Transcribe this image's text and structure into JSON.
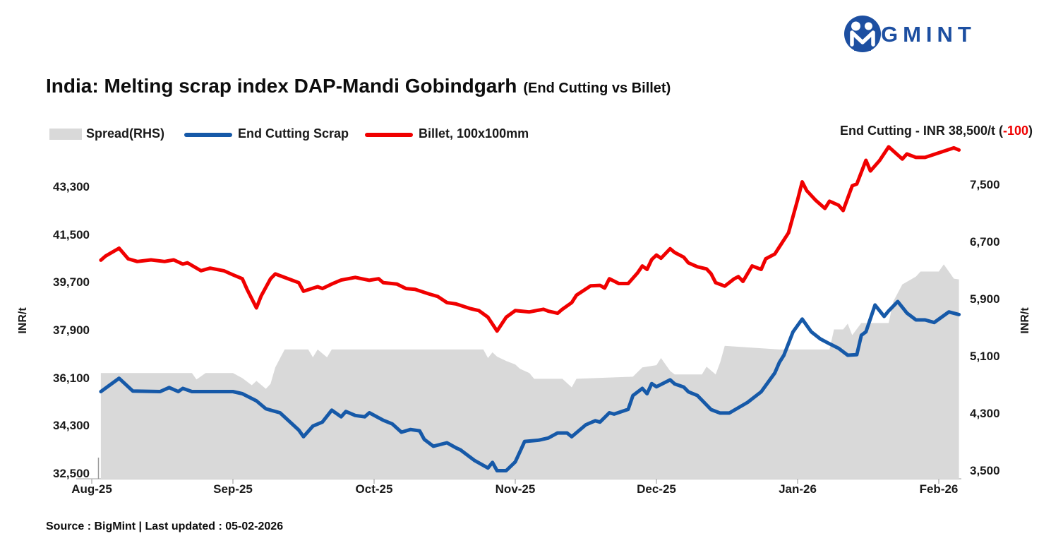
{
  "brand": {
    "name": "BIGMINT",
    "color": "#1d4fa1"
  },
  "title": {
    "main": "India: Melting scrap index DAP-Mandi Gobindgarh",
    "sub": "(End Cutting vs Billet)"
  },
  "annotation": {
    "prefix": "End Cutting - INR 38,500/t (",
    "change": "-100",
    "suffix": ")"
  },
  "footer": {
    "source": "Source : BigMint | Last updated : 05-02-2026"
  },
  "chart_data": {
    "type": "line",
    "title": "India: Melting scrap index DAP-Mandi Gobindgarh (End Cutting vs Billet)",
    "left_axis": {
      "label": "INR/t",
      "range": [
        32500,
        43300
      ],
      "tick_labels": [
        "43,300",
        "41,500",
        "39,700",
        "37,900",
        "36,100",
        "34,300",
        "32,500"
      ],
      "tick_values": [
        43300,
        41500,
        39700,
        37900,
        36100,
        34300,
        32500
      ]
    },
    "right_axis": {
      "label": "INR/t",
      "range": [
        3500,
        7500
      ],
      "tick_labels": [
        "7,500",
        "6,700",
        "5,900",
        "5,100",
        "4,300",
        "3,500"
      ],
      "tick_values": [
        7500,
        6700,
        5900,
        5100,
        4300,
        3500
      ]
    },
    "x_axis": {
      "tick_labels": [
        "Aug-25",
        "Sep-25",
        "Oct-25",
        "Nov-25",
        "Dec-25",
        "Jan-26",
        "Feb-26"
      ]
    },
    "legend_position": "top-left",
    "grid": false,
    "series": [
      {
        "name": "Spread(RHS)",
        "type": "area",
        "axis": "right",
        "color": "#d9d9d9",
        "points": [
          [
            "2025-08-03",
            4870
          ],
          [
            "2025-08-23",
            4870
          ],
          [
            "2025-08-24",
            4780
          ],
          [
            "2025-08-26",
            4870
          ],
          [
            "2025-09-01",
            4870
          ],
          [
            "2025-09-03",
            4800
          ],
          [
            "2025-09-05",
            4700
          ],
          [
            "2025-09-06",
            4760
          ],
          [
            "2025-09-08",
            4650
          ],
          [
            "2025-09-09",
            4720
          ],
          [
            "2025-09-10",
            4950
          ],
          [
            "2025-09-12",
            5200
          ],
          [
            "2025-09-17",
            5200
          ],
          [
            "2025-09-18",
            5090
          ],
          [
            "2025-09-19",
            5200
          ],
          [
            "2025-09-21",
            5090
          ],
          [
            "2025-09-22",
            5200
          ],
          [
            "2025-10-25",
            5200
          ],
          [
            "2025-10-26",
            5080
          ],
          [
            "2025-10-27",
            5160
          ],
          [
            "2025-10-28",
            5100
          ],
          [
            "2025-10-30",
            5040
          ],
          [
            "2025-11-01",
            4990
          ],
          [
            "2025-11-02",
            4930
          ],
          [
            "2025-11-04",
            4870
          ],
          [
            "2025-11-05",
            4790
          ],
          [
            "2025-11-11",
            4790
          ],
          [
            "2025-11-13",
            4670
          ],
          [
            "2025-11-14",
            4790
          ],
          [
            "2025-11-26",
            4820
          ],
          [
            "2025-11-28",
            4950
          ],
          [
            "2025-12-01",
            4980
          ],
          [
            "2025-12-02",
            5080
          ],
          [
            "2025-12-03",
            4990
          ],
          [
            "2025-12-04",
            4900
          ],
          [
            "2025-12-05",
            4850
          ],
          [
            "2025-12-11",
            4850
          ],
          [
            "2025-12-12",
            4960
          ],
          [
            "2025-12-14",
            4850
          ],
          [
            "2025-12-15",
            5020
          ],
          [
            "2025-12-16",
            5250
          ],
          [
            "2025-12-28",
            5200
          ],
          [
            "2026-01-08",
            5200
          ],
          [
            "2026-01-09",
            5480
          ],
          [
            "2026-01-11",
            5480
          ],
          [
            "2026-01-12",
            5560
          ],
          [
            "2026-01-13",
            5400
          ],
          [
            "2026-01-15",
            5570
          ],
          [
            "2026-01-21",
            5570
          ],
          [
            "2026-01-22",
            5870
          ],
          [
            "2026-01-24",
            6110
          ],
          [
            "2026-01-27",
            6220
          ],
          [
            "2026-01-28",
            6290
          ],
          [
            "2026-02-01",
            6290
          ],
          [
            "2026-02-02",
            6390
          ],
          [
            "2026-02-03",
            6290
          ],
          [
            "2026-02-04",
            6190
          ],
          [
            "2026-02-05",
            6180
          ]
        ]
      },
      {
        "name": "End Cutting Scrap",
        "type": "line",
        "axis": "left",
        "color": "#1659a8",
        "last_value": 38500,
        "last_change": -100,
        "points": [
          [
            "2025-08-03",
            35600
          ],
          [
            "2025-08-07",
            36100
          ],
          [
            "2025-08-10",
            35620
          ],
          [
            "2025-08-16",
            35600
          ],
          [
            "2025-08-18",
            35750
          ],
          [
            "2025-08-20",
            35600
          ],
          [
            "2025-08-21",
            35720
          ],
          [
            "2025-08-23",
            35600
          ],
          [
            "2025-09-01",
            35600
          ],
          [
            "2025-09-03",
            35520
          ],
          [
            "2025-09-06",
            35250
          ],
          [
            "2025-09-08",
            34950
          ],
          [
            "2025-09-11",
            34800
          ],
          [
            "2025-09-15",
            34150
          ],
          [
            "2025-09-16",
            33900
          ],
          [
            "2025-09-18",
            34300
          ],
          [
            "2025-09-20",
            34450
          ],
          [
            "2025-09-22",
            34900
          ],
          [
            "2025-09-24",
            34650
          ],
          [
            "2025-09-25",
            34850
          ],
          [
            "2025-09-27",
            34700
          ],
          [
            "2025-09-29",
            34650
          ],
          [
            "2025-09-30",
            34800
          ],
          [
            "2025-10-03",
            34520
          ],
          [
            "2025-10-05",
            34380
          ],
          [
            "2025-10-07",
            34070
          ],
          [
            "2025-10-09",
            34170
          ],
          [
            "2025-10-11",
            34120
          ],
          [
            "2025-10-12",
            33800
          ],
          [
            "2025-10-14",
            33540
          ],
          [
            "2025-10-17",
            33670
          ],
          [
            "2025-10-19",
            33480
          ],
          [
            "2025-10-20",
            33400
          ],
          [
            "2025-10-23",
            33010
          ],
          [
            "2025-10-26",
            32720
          ],
          [
            "2025-10-27",
            32930
          ],
          [
            "2025-10-28",
            32620
          ],
          [
            "2025-10-30",
            32620
          ],
          [
            "2025-11-01",
            32950
          ],
          [
            "2025-11-03",
            33720
          ],
          [
            "2025-11-06",
            33770
          ],
          [
            "2025-11-08",
            33850
          ],
          [
            "2025-11-10",
            34040
          ],
          [
            "2025-11-12",
            34040
          ],
          [
            "2025-11-13",
            33900
          ],
          [
            "2025-11-16",
            34350
          ],
          [
            "2025-11-18",
            34500
          ],
          [
            "2025-11-19",
            34450
          ],
          [
            "2025-11-21",
            34800
          ],
          [
            "2025-11-22",
            34750
          ],
          [
            "2025-11-25",
            34930
          ],
          [
            "2025-11-26",
            35450
          ],
          [
            "2025-11-28",
            35720
          ],
          [
            "2025-11-29",
            35520
          ],
          [
            "2025-11-30",
            35900
          ],
          [
            "2025-12-01",
            35780
          ],
          [
            "2025-12-04",
            36040
          ],
          [
            "2025-12-05",
            35890
          ],
          [
            "2025-12-07",
            35770
          ],
          [
            "2025-12-08",
            35590
          ],
          [
            "2025-12-10",
            35450
          ],
          [
            "2025-12-13",
            34920
          ],
          [
            "2025-12-15",
            34790
          ],
          [
            "2025-12-17",
            34790
          ],
          [
            "2025-12-21",
            35190
          ],
          [
            "2025-12-24",
            35590
          ],
          [
            "2025-12-27",
            36300
          ],
          [
            "2025-12-28",
            36700
          ],
          [
            "2025-12-29",
            36970
          ],
          [
            "2025-12-31",
            37850
          ],
          [
            "2026-01-02",
            38330
          ],
          [
            "2026-01-04",
            37850
          ],
          [
            "2026-01-06",
            37580
          ],
          [
            "2026-01-08",
            37400
          ],
          [
            "2026-01-10",
            37230
          ],
          [
            "2026-01-12",
            36970
          ],
          [
            "2026-01-14",
            36990
          ],
          [
            "2026-01-15",
            37720
          ],
          [
            "2026-01-16",
            37850
          ],
          [
            "2026-01-18",
            38860
          ],
          [
            "2026-01-20",
            38430
          ],
          [
            "2026-01-21",
            38640
          ],
          [
            "2026-01-23",
            38990
          ],
          [
            "2026-01-25",
            38560
          ],
          [
            "2026-01-27",
            38300
          ],
          [
            "2026-01-29",
            38300
          ],
          [
            "2026-01-31",
            38200
          ],
          [
            "2026-02-03",
            38600
          ],
          [
            "2026-02-05",
            38500
          ]
        ]
      },
      {
        "name": "Billet, 100x100mm",
        "type": "line",
        "axis": "left",
        "color": "#f00000",
        "points": [
          [
            "2025-08-03",
            40550
          ],
          [
            "2025-08-04",
            40700
          ],
          [
            "2025-08-07",
            41000
          ],
          [
            "2025-08-09",
            40600
          ],
          [
            "2025-08-11",
            40500
          ],
          [
            "2025-08-14",
            40560
          ],
          [
            "2025-08-17",
            40500
          ],
          [
            "2025-08-19",
            40560
          ],
          [
            "2025-08-21",
            40400
          ],
          [
            "2025-08-22",
            40450
          ],
          [
            "2025-08-25",
            40150
          ],
          [
            "2025-08-27",
            40250
          ],
          [
            "2025-08-30",
            40150
          ],
          [
            "2025-09-01",
            40000
          ],
          [
            "2025-09-03",
            39850
          ],
          [
            "2025-09-04",
            39450
          ],
          [
            "2025-09-06",
            38750
          ],
          [
            "2025-09-07",
            39200
          ],
          [
            "2025-09-09",
            39850
          ],
          [
            "2025-09-10",
            40030
          ],
          [
            "2025-09-13",
            39830
          ],
          [
            "2025-09-15",
            39700
          ],
          [
            "2025-09-16",
            39380
          ],
          [
            "2025-09-19",
            39550
          ],
          [
            "2025-09-20",
            39480
          ],
          [
            "2025-09-22",
            39650
          ],
          [
            "2025-09-24",
            39800
          ],
          [
            "2025-09-27",
            39900
          ],
          [
            "2025-09-30",
            39790
          ],
          [
            "2025-10-02",
            39850
          ],
          [
            "2025-10-03",
            39700
          ],
          [
            "2025-10-06",
            39650
          ],
          [
            "2025-10-08",
            39480
          ],
          [
            "2025-10-10",
            39450
          ],
          [
            "2025-10-13",
            39280
          ],
          [
            "2025-10-15",
            39180
          ],
          [
            "2025-10-17",
            38950
          ],
          [
            "2025-10-19",
            38900
          ],
          [
            "2025-10-22",
            38730
          ],
          [
            "2025-10-24",
            38650
          ],
          [
            "2025-10-26",
            38400
          ],
          [
            "2025-10-28",
            37880
          ],
          [
            "2025-10-30",
            38400
          ],
          [
            "2025-11-01",
            38650
          ],
          [
            "2025-11-04",
            38600
          ],
          [
            "2025-11-07",
            38700
          ],
          [
            "2025-11-08",
            38630
          ],
          [
            "2025-11-10",
            38550
          ],
          [
            "2025-11-11",
            38700
          ],
          [
            "2025-11-13",
            38950
          ],
          [
            "2025-11-14",
            39230
          ],
          [
            "2025-11-17",
            39580
          ],
          [
            "2025-11-19",
            39600
          ],
          [
            "2025-11-20",
            39500
          ],
          [
            "2025-11-21",
            39850
          ],
          [
            "2025-11-23",
            39670
          ],
          [
            "2025-11-25",
            39670
          ],
          [
            "2025-11-27",
            40070
          ],
          [
            "2025-11-28",
            40330
          ],
          [
            "2025-11-29",
            40200
          ],
          [
            "2025-11-30",
            40570
          ],
          [
            "2025-12-01",
            40740
          ],
          [
            "2025-12-02",
            40620
          ],
          [
            "2025-12-04",
            40980
          ],
          [
            "2025-12-05",
            40840
          ],
          [
            "2025-12-07",
            40660
          ],
          [
            "2025-12-08",
            40450
          ],
          [
            "2025-12-10",
            40300
          ],
          [
            "2025-12-12",
            40220
          ],
          [
            "2025-12-13",
            40040
          ],
          [
            "2025-12-14",
            39700
          ],
          [
            "2025-12-16",
            39570
          ],
          [
            "2025-12-18",
            39840
          ],
          [
            "2025-12-19",
            39930
          ],
          [
            "2025-12-20",
            39750
          ],
          [
            "2025-12-22",
            40330
          ],
          [
            "2025-12-24",
            40200
          ],
          [
            "2025-12-25",
            40600
          ],
          [
            "2025-12-27",
            40780
          ],
          [
            "2025-12-28",
            41050
          ],
          [
            "2025-12-30",
            41580
          ],
          [
            "2026-01-01",
            42820
          ],
          [
            "2026-01-02",
            43500
          ],
          [
            "2026-01-03",
            43170
          ],
          [
            "2026-01-05",
            42800
          ],
          [
            "2026-01-07",
            42500
          ],
          [
            "2026-01-08",
            42770
          ],
          [
            "2026-01-10",
            42620
          ],
          [
            "2026-01-11",
            42420
          ],
          [
            "2026-01-13",
            43350
          ],
          [
            "2026-01-14",
            43420
          ],
          [
            "2026-01-16",
            44310
          ],
          [
            "2026-01-17",
            43910
          ],
          [
            "2026-01-19",
            44300
          ],
          [
            "2026-01-21",
            44820
          ],
          [
            "2026-01-24",
            44360
          ],
          [
            "2026-01-25",
            44550
          ],
          [
            "2026-01-27",
            44420
          ],
          [
            "2026-01-29",
            44420
          ],
          [
            "2026-02-04",
            44780
          ],
          [
            "2026-02-05",
            44700
          ]
        ]
      }
    ],
    "annotation": {
      "text": "End Cutting - INR 38,500/t",
      "change": "-100",
      "change_color": "#f00000"
    }
  }
}
